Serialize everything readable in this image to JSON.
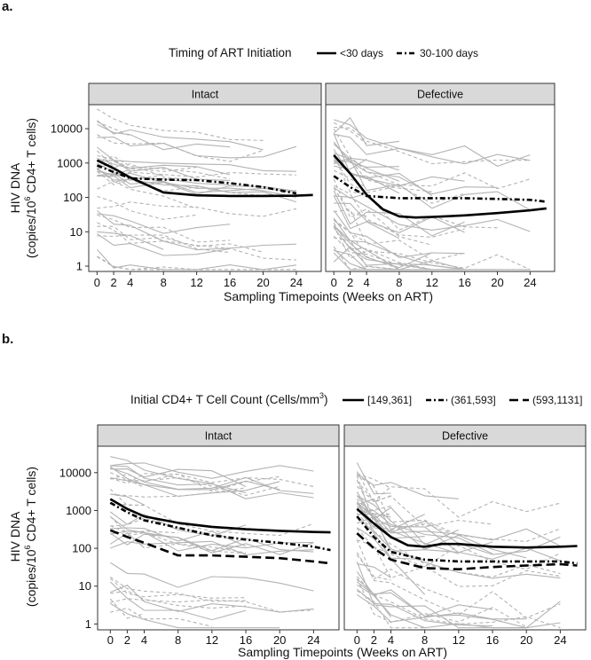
{
  "chart_data": [
    {
      "panel_label": "a.",
      "type": "line",
      "legend": {
        "title": "Timing of ART Initiation",
        "entries": [
          {
            "label": "<30 days",
            "style": "solid"
          },
          {
            "label": "30-100 days",
            "style": "dashdot"
          }
        ]
      },
      "ylabel_line1": "HIV DNA",
      "ylabel_line2_pre": "(copies/10",
      "ylabel_line2_sup": "6",
      "ylabel_line2_post": " CD4+ T cells)",
      "xlabel": "Sampling Timepoints (Weeks on ART)",
      "x_ticks": [
        0,
        2,
        4,
        8,
        12,
        16,
        20,
        24
      ],
      "x_tick_labels": [
        "0",
        "2",
        "4",
        "8",
        "12",
        "16",
        "20",
        "24"
      ],
      "xlim": [
        -1,
        27
      ],
      "y_scale": "log10",
      "ylim": [
        0.7,
        50000
      ],
      "y_ticks": [
        1,
        10,
        100,
        1000,
        10000
      ],
      "y_tick_labels": [
        "1",
        "10",
        "100",
        "1000",
        "10000"
      ],
      "facets": [
        {
          "title": "Intact",
          "series": [
            {
              "name": "<30 days",
              "style": "solid",
              "x": [
                0,
                2,
                4,
                8,
                12,
                16,
                20,
                24,
                26
              ],
              "values": [
                1200,
                700,
                380,
                140,
                115,
                110,
                110,
                112,
                118
              ]
            },
            {
              "name": "30-100 days",
              "style": "dashdot",
              "x": [
                0,
                2,
                4,
                8,
                12,
                16,
                20,
                24
              ],
              "values": [
                850,
                550,
                360,
                330,
                320,
                260,
                200,
                130
              ]
            }
          ]
        },
        {
          "title": "Defective",
          "series": [
            {
              "name": "<30 days",
              "style": "solid",
              "x": [
                0,
                2,
                4,
                6,
                8,
                10,
                12,
                16,
                20,
                24,
                26
              ],
              "values": [
                1700,
                500,
                120,
                45,
                28,
                26,
                27,
                30,
                35,
                42,
                48
              ]
            },
            {
              "name": "30-100 days",
              "style": "dashdot",
              "x": [
                0,
                2,
                4,
                8,
                12,
                16,
                20,
                24,
                26
              ],
              "values": [
                420,
                200,
                110,
                95,
                95,
                95,
                90,
                85,
                75
              ]
            }
          ]
        }
      ]
    },
    {
      "panel_label": "b.",
      "type": "line",
      "legend": {
        "title_pre": "Initial CD4+ T Cell Count (Cells/mm",
        "title_sup": "3",
        "title_post": ")",
        "entries": [
          {
            "label": "[149,361]",
            "style": "solid"
          },
          {
            "label": "(361,593]",
            "style": "dashdot"
          },
          {
            "label": "(593,1131]",
            "style": "longdash"
          }
        ]
      },
      "ylabel_line1": "HIV DNA",
      "ylabel_line2_pre": "(copies/10",
      "ylabel_line2_sup": "6",
      "ylabel_line2_post": " CD4+ T cells)",
      "xlabel": "Sampling Timepoints (Weeks on ART)",
      "x_ticks": [
        0,
        2,
        4,
        8,
        12,
        16,
        20,
        24
      ],
      "x_tick_labels": [
        "0",
        "2",
        "4",
        "8",
        "12",
        "16",
        "20",
        "24"
      ],
      "xlim": [
        -1.5,
        27
      ],
      "y_scale": "log10",
      "ylim": [
        0.7,
        50000
      ],
      "y_ticks": [
        1,
        10,
        100,
        1000,
        10000
      ],
      "y_tick_labels": [
        "1",
        "10",
        "100",
        "1000",
        "10000"
      ],
      "facets": [
        {
          "title": "Intact",
          "series": [
            {
              "name": "[149,361]",
              "style": "solid",
              "x": [
                0,
                2,
                4,
                8,
                12,
                16,
                20,
                24,
                26
              ],
              "values": [
                2000,
                1100,
                700,
                470,
                370,
                320,
                290,
                270,
                265
              ]
            },
            {
              "name": "(361,593]",
              "style": "dashdot",
              "x": [
                0,
                2,
                4,
                8,
                12,
                16,
                20,
                24,
                26
              ],
              "values": [
                1600,
                900,
                550,
                350,
                220,
                170,
                140,
                110,
                90
              ]
            },
            {
              "name": "(593,1131]",
              "style": "longdash",
              "x": [
                0,
                2,
                4,
                8,
                12,
                16,
                20,
                24,
                26
              ],
              "values": [
                300,
                200,
                140,
                65,
                65,
                60,
                55,
                45,
                40
              ]
            }
          ]
        },
        {
          "title": "Defective",
          "series": [
            {
              "name": "[149,361]",
              "style": "solid",
              "x": [
                0,
                2,
                4,
                6,
                8,
                10,
                12,
                16,
                20,
                24,
                26
              ],
              "values": [
                1100,
                450,
                200,
                120,
                110,
                130,
                130,
                110,
                105,
                110,
                115
              ]
            },
            {
              "name": "(361,593]",
              "style": "dashdot",
              "x": [
                0,
                2,
                4,
                8,
                12,
                16,
                20,
                24,
                26
              ],
              "values": [
                700,
                200,
                80,
                50,
                45,
                45,
                45,
                45,
                40
              ]
            },
            {
              "name": "(593,1131]",
              "style": "longdash",
              "x": [
                0,
                2,
                4,
                8,
                12,
                16,
                20,
                24,
                26
              ],
              "values": [
                250,
                100,
                50,
                30,
                28,
                32,
                35,
                38,
                35
              ]
            }
          ]
        }
      ]
    }
  ]
}
